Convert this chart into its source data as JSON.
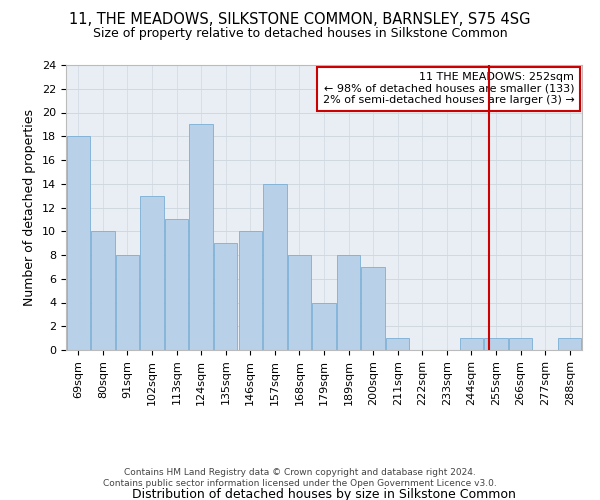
{
  "title": "11, THE MEADOWS, SILKSTONE COMMON, BARNSLEY, S75 4SG",
  "subtitle": "Size of property relative to detached houses in Silkstone Common",
  "xlabel_bottom": "Distribution of detached houses by size in Silkstone Common",
  "ylabel": "Number of detached properties",
  "footer": "Contains HM Land Registry data © Crown copyright and database right 2024.\nContains public sector information licensed under the Open Government Licence v3.0.",
  "bar_labels": [
    "69sqm",
    "80sqm",
    "91sqm",
    "102sqm",
    "113sqm",
    "124sqm",
    "135sqm",
    "146sqm",
    "157sqm",
    "168sqm",
    "179sqm",
    "189sqm",
    "200sqm",
    "211sqm",
    "222sqm",
    "233sqm",
    "244sqm",
    "255sqm",
    "266sqm",
    "277sqm",
    "288sqm"
  ],
  "bar_values": [
    18,
    10,
    8,
    13,
    11,
    19,
    9,
    10,
    14,
    8,
    4,
    8,
    7,
    1,
    0,
    0,
    1,
    1,
    1,
    0,
    1
  ],
  "bar_color": "#b8d0e8",
  "bar_edge_color": "#7aafd4",
  "ylim": [
    0,
    24
  ],
  "yticks": [
    0,
    2,
    4,
    6,
    8,
    10,
    12,
    14,
    16,
    18,
    20,
    22,
    24
  ],
  "grid_color": "#d0d8e0",
  "background_color": "#e8eef4",
  "red_line_x": 16.7,
  "annotation_text": "11 THE MEADOWS: 252sqm\n← 98% of detached houses are smaller (133)\n2% of semi-detached houses are larger (3) →",
  "annotation_box_color": "#cc0000",
  "title_fontsize": 10.5,
  "subtitle_fontsize": 9,
  "axis_label_fontsize": 9,
  "tick_fontsize": 8,
  "annotation_fontsize": 8,
  "footer_fontsize": 6.5
}
